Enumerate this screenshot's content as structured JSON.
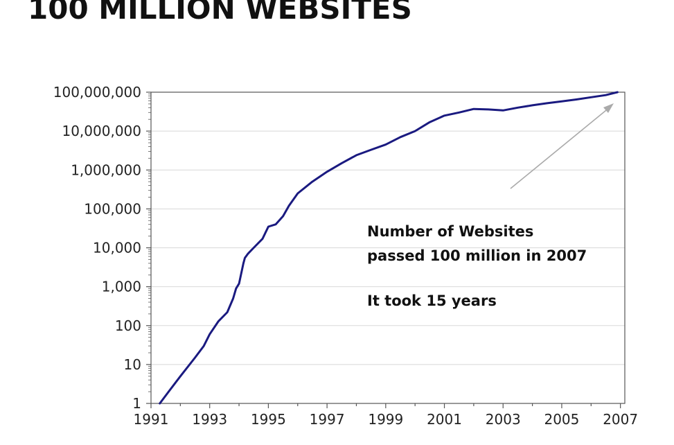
{
  "title": "100 MILLION WEBSITES",
  "chart_data": {
    "type": "line",
    "title": "100 MILLION WEBSITES",
    "xlabel": "",
    "ylabel": "",
    "yscale": "log",
    "xlim": [
      1991,
      2007.15
    ],
    "ylim": [
      1,
      100000000
    ],
    "grid": true,
    "x_tick_labels": [
      "1991",
      "1993",
      "1995",
      "1997",
      "1999",
      "2001",
      "2003",
      "2005",
      "2007"
    ],
    "y_tick_labels": [
      "100,000,000",
      "10,000,000",
      "1,000,000",
      "100,000",
      "10,000",
      "1,000",
      "100",
      "10",
      "1"
    ],
    "series": [
      {
        "color": "#1a1a80",
        "x": [
          1991.3,
          1991.6,
          1992.0,
          1992.5,
          1992.8,
          1993.0,
          1993.3,
          1993.6,
          1993.8,
          1993.9,
          1994.0,
          1994.15,
          1994.2,
          1994.3,
          1994.5,
          1994.8,
          1995.0,
          1995.25,
          1995.5,
          1995.7,
          1996.0,
          1996.5,
          1997.0,
          1997.5,
          1998.0,
          1998.5,
          1999.0,
          1999.5,
          2000.0,
          2000.5,
          2001.0,
          2001.5,
          2002.0,
          2002.5,
          2003.0,
          2003.5,
          2004.0,
          2004.5,
          2005.0,
          2005.5,
          2006.0,
          2006.5,
          2006.9
        ],
        "y": [
          1,
          2,
          5,
          15,
          30,
          60,
          130,
          220,
          500,
          900,
          1200,
          4000,
          5500,
          7000,
          10000,
          17000,
          35000,
          40000,
          65000,
          120000,
          250000,
          500000,
          900000,
          1500000,
          2400000,
          3300000,
          4500000,
          7000000,
          10000000,
          17000000,
          25000000,
          30000000,
          37000000,
          36000000,
          34000000,
          40000000,
          46000000,
          52000000,
          58000000,
          65000000,
          74000000,
          84000000,
          100000000
        ]
      }
    ],
    "annotations": [
      "Number of Websites",
      "passed 100 million in 2007",
      "It took 15 years"
    ]
  }
}
